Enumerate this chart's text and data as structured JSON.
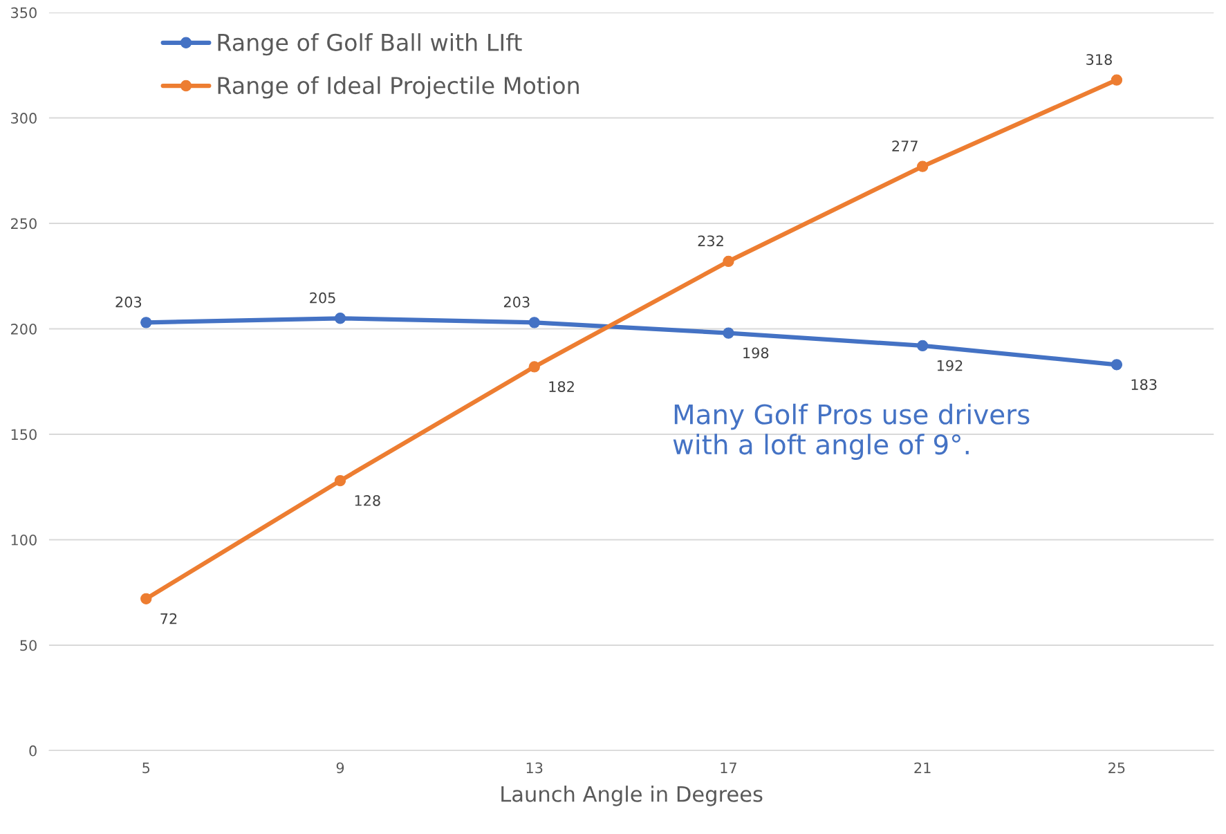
{
  "chart_data": {
    "type": "line",
    "xlabel": "Launch Angle in Degrees",
    "categories": [
      "5",
      "9",
      "13",
      "17",
      "21",
      "25"
    ],
    "series": [
      {
        "name": "Range of Golf Ball with LIft",
        "color": "#4472c4",
        "values": [
          203,
          205,
          203,
          198,
          192,
          183
        ]
      },
      {
        "name": "Range of Ideal Projectile Motion",
        "color": "#ed7d31",
        "values": [
          72,
          128,
          182,
          232,
          277,
          318
        ]
      }
    ],
    "ylim": [
      0,
      350
    ],
    "yticks": [
      0,
      50,
      100,
      150,
      200,
      250,
      300,
      350
    ],
    "grid": "y",
    "legend": "top left",
    "marker": "circle",
    "line_style": "solid",
    "data_labels": true,
    "annotations": [
      "Many Golf Pros use drivers\nwith a loft angle of 9°."
    ]
  }
}
